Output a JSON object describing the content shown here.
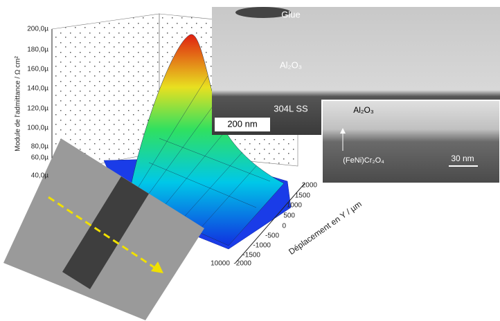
{
  "plot": {
    "z_axis_label": "Module de l'admittance / Ω cm²",
    "z_ticks": [
      "200,0µ",
      "180,0µ",
      "160,0µ",
      "140,0µ",
      "120,0µ",
      "100,0µ",
      "80,0µ",
      "60,0µ",
      "40,0µ"
    ],
    "y_axis_label": "Déplacement en Y / µm",
    "y_ticks": [
      "2000",
      "1500",
      "1000",
      "500",
      "0",
      "-500",
      "-1000",
      "-1500",
      "-2000"
    ],
    "x_ticks": [
      "10000"
    ]
  },
  "tem_large": {
    "glue": "Glue",
    "oxide": "Al₂O₃",
    "substrate": "304L SS",
    "scale": "200 nm"
  },
  "tem_small": {
    "oxide": "Al₂O₃",
    "spinel": "(FeNi)Cr₂O₄",
    "scale": "30 nm"
  }
}
